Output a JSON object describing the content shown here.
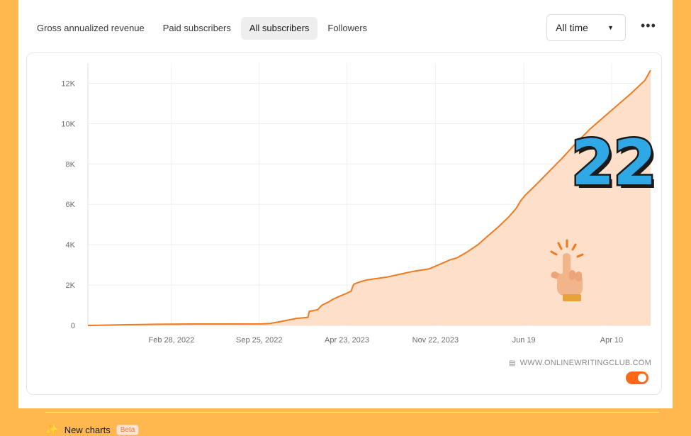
{
  "tabs": [
    {
      "label": "Gross annualized revenue",
      "active": false
    },
    {
      "label": "Paid subscribers",
      "active": false
    },
    {
      "label": "All subscribers",
      "active": true
    },
    {
      "label": "Followers",
      "active": false
    }
  ],
  "range_select": {
    "value": "All time"
  },
  "more_label": "•••",
  "watermark": "WWW.ONLINEWRITINGCLUB.COM",
  "overlay_number": "22",
  "footer": {
    "new_charts_label": "New charts",
    "beta_label": "Beta",
    "toggle_on": true
  },
  "colors": {
    "line": "#F07A20",
    "area": "#FDDCC4",
    "accent": "#FF6719"
  },
  "chart_data": {
    "type": "area",
    "x_tick_labels": [
      "Feb 28, 2022",
      "Sep 25, 2022",
      "Apr 23, 2023",
      "Nov 22, 2023",
      "Jun 19",
      "Apr 10"
    ],
    "y_tick_labels": [
      "0",
      "2K",
      "4K",
      "6K",
      "8K",
      "10K",
      "12K"
    ],
    "y_ticks": [
      0,
      2000,
      4000,
      6000,
      8000,
      10000,
      12000
    ],
    "ylim": [
      0,
      13000
    ],
    "grid": true,
    "series": [
      {
        "values": [
          [
            0,
            0
          ],
          [
            25,
            15
          ],
          [
            50,
            30
          ],
          [
            100,
            55
          ],
          [
            150,
            70
          ],
          [
            200,
            70
          ],
          [
            250,
            75
          ],
          [
            262,
            100
          ],
          [
            275,
            180
          ],
          [
            290,
            280
          ],
          [
            300,
            350
          ],
          [
            310,
            380
          ],
          [
            316,
            400
          ],
          [
            318,
            700
          ],
          [
            330,
            780
          ],
          [
            336,
            1000
          ],
          [
            345,
            1150
          ],
          [
            352,
            1300
          ],
          [
            362,
            1450
          ],
          [
            372,
            1600
          ],
          [
            378,
            1700
          ],
          [
            380,
            1900
          ],
          [
            382,
            2050
          ],
          [
            390,
            2150
          ],
          [
            400,
            2250
          ],
          [
            410,
            2300
          ],
          [
            430,
            2400
          ],
          [
            450,
            2550
          ],
          [
            470,
            2700
          ],
          [
            490,
            2800
          ],
          [
            500,
            2950
          ],
          [
            510,
            3100
          ],
          [
            520,
            3250
          ],
          [
            530,
            3350
          ],
          [
            545,
            3650
          ],
          [
            560,
            4000
          ],
          [
            575,
            4450
          ],
          [
            590,
            4900
          ],
          [
            605,
            5400
          ],
          [
            615,
            5800
          ],
          [
            622,
            6200
          ],
          [
            628,
            6450
          ],
          [
            640,
            6850
          ],
          [
            660,
            7550
          ],
          [
            680,
            8250
          ],
          [
            700,
            9000
          ],
          [
            720,
            9700
          ],
          [
            740,
            10300
          ],
          [
            760,
            10900
          ],
          [
            780,
            11500
          ],
          [
            800,
            12150
          ],
          [
            808,
            12650
          ]
        ]
      }
    ],
    "x_tick_positions": [
      120,
      246,
      372,
      499,
      626,
      752
    ],
    "x_domain": [
      0,
      808
    ]
  }
}
